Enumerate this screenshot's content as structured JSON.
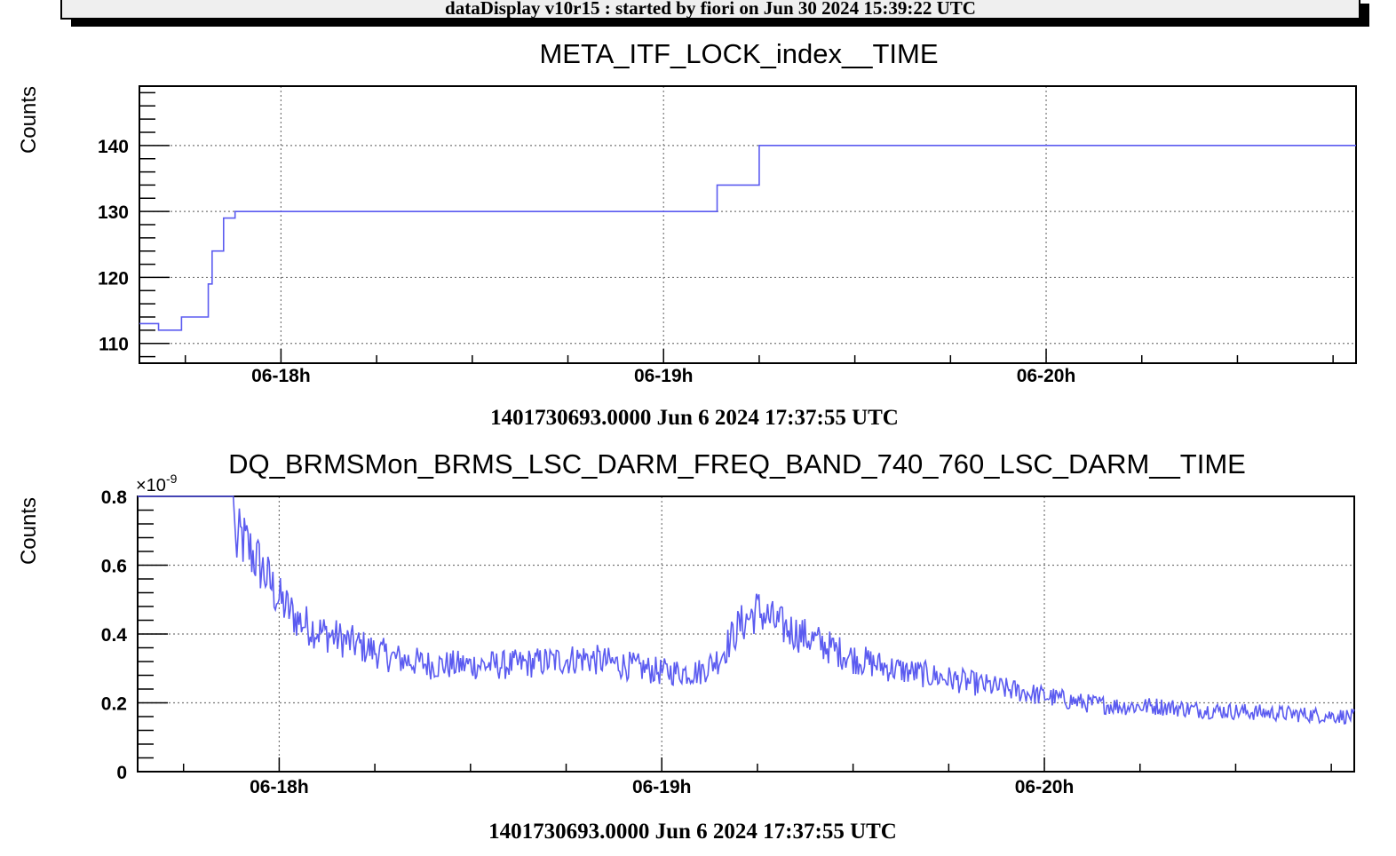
{
  "banner": {
    "text": "dataDisplay v10r15 : started by fiori on Jun 30 2024 15:39:22 UTC"
  },
  "colors": {
    "series": "#5b5bf0",
    "grid": "#777777",
    "axis": "#000000"
  },
  "chart_data": [
    {
      "type": "line",
      "title": "META_ITF_LOCK_index__TIME",
      "ylabel": "Counts",
      "xlabel": "1401730693.0000 Jun 6 2024 17:37:55 UTC",
      "xlim_hours": [
        17.63,
        20.81
      ],
      "ylim": [
        107,
        149
      ],
      "x_ticks": [
        {
          "hour": 18,
          "label": "06-18h"
        },
        {
          "hour": 19,
          "label": "06-19h"
        },
        {
          "hour": 20,
          "label": "06-20h"
        }
      ],
      "y_ticks": [
        {
          "value": 110,
          "label": "110"
        },
        {
          "value": 120,
          "label": "120"
        },
        {
          "value": 130,
          "label": "130"
        },
        {
          "value": 140,
          "label": "140"
        }
      ],
      "grid": true,
      "step": true,
      "series": [
        {
          "points": [
            [
              17.63,
              113
            ],
            [
              17.68,
              112
            ],
            [
              17.74,
              114
            ],
            [
              17.81,
              119
            ],
            [
              17.82,
              124
            ],
            [
              17.85,
              129
            ],
            [
              17.88,
              130
            ],
            [
              19.14,
              134
            ],
            [
              19.25,
              140
            ],
            [
              20.81,
              140
            ]
          ]
        }
      ]
    },
    {
      "type": "line",
      "title": "DQ_BRMSMon_BRMS_LSC_DARM_FREQ_BAND_740_760_LSC_DARM__TIME",
      "ylabel": "Counts",
      "xlabel": "1401730693.0000 Jun 6 2024 17:37:55 UTC",
      "y_multiplier": "×10",
      "y_exponent": "-9",
      "xlim_hours": [
        17.63,
        20.81
      ],
      "ylim": [
        0,
        0.8
      ],
      "x_ticks": [
        {
          "hour": 18,
          "label": "06-18h"
        },
        {
          "hour": 19,
          "label": "06-19h"
        },
        {
          "hour": 20,
          "label": "06-20h"
        }
      ],
      "y_ticks": [
        {
          "value": 0,
          "label": "0"
        },
        {
          "value": 0.2,
          "label": "0.2"
        },
        {
          "value": 0.4,
          "label": "0.4"
        },
        {
          "value": 0.6,
          "label": "0.6"
        },
        {
          "value": 0.8,
          "label": "0.8"
        }
      ],
      "grid": true,
      "series": [
        {
          "points": [
            [
              17.63,
              0.8
            ],
            [
              17.88,
              0.8
            ],
            [
              17.885,
              0.65
            ],
            [
              17.9,
              0.68
            ],
            [
              17.95,
              0.6
            ],
            [
              18.0,
              0.5
            ],
            [
              18.05,
              0.44
            ],
            [
              18.1,
              0.41
            ],
            [
              18.2,
              0.37
            ],
            [
              18.3,
              0.33
            ],
            [
              18.4,
              0.31
            ],
            [
              18.5,
              0.31
            ],
            [
              18.6,
              0.31
            ],
            [
              18.7,
              0.32
            ],
            [
              18.8,
              0.33
            ],
            [
              18.9,
              0.31
            ],
            [
              19.0,
              0.29
            ],
            [
              19.1,
              0.29
            ],
            [
              19.15,
              0.33
            ],
            [
              19.2,
              0.42
            ],
            [
              19.25,
              0.47
            ],
            [
              19.3,
              0.43
            ],
            [
              19.4,
              0.38
            ],
            [
              19.5,
              0.33
            ],
            [
              19.6,
              0.3
            ],
            [
              19.7,
              0.28
            ],
            [
              19.8,
              0.26
            ],
            [
              19.9,
              0.24
            ],
            [
              20.0,
              0.22
            ],
            [
              20.1,
              0.2
            ],
            [
              20.2,
              0.19
            ],
            [
              20.3,
              0.19
            ],
            [
              20.4,
              0.18
            ],
            [
              20.5,
              0.175
            ],
            [
              20.6,
              0.17
            ],
            [
              20.7,
              0.165
            ],
            [
              20.81,
              0.16
            ]
          ]
        }
      ]
    }
  ]
}
